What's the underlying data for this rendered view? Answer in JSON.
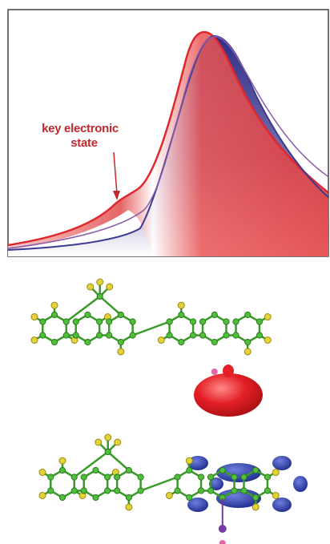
{
  "annotation": {
    "lines": [
      "key electronic",
      "state"
    ]
  }
}
